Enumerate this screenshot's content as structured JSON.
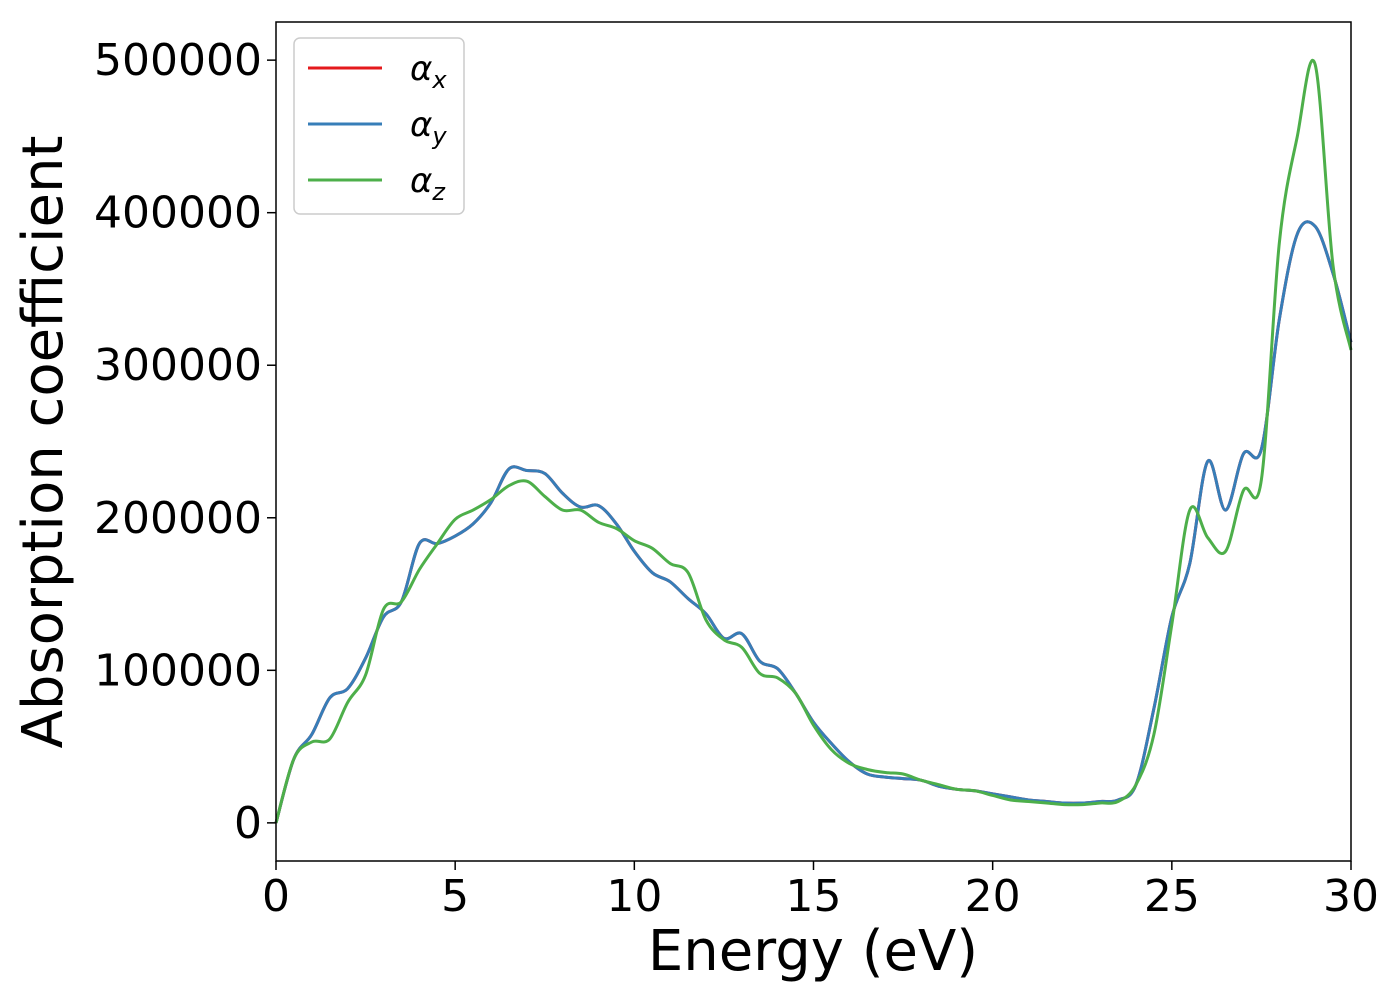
{
  "chart_data": {
    "type": "line",
    "title": "",
    "xlabel": "Energy (eV)",
    "ylabel": "Absorption coefficient",
    "xlim": [
      0,
      30
    ],
    "ylim": [
      -25000,
      525000
    ],
    "xticks": [
      0,
      5,
      10,
      15,
      20,
      25,
      30
    ],
    "xtick_labels": [
      "0",
      "5",
      "10",
      "15",
      "20",
      "25",
      "30"
    ],
    "yticks": [
      0,
      100000,
      200000,
      300000,
      400000,
      500000
    ],
    "ytick_labels": [
      "0",
      "100000",
      "200000",
      "300000",
      "400000",
      "500000"
    ],
    "grid": false,
    "legend_position": "top-left",
    "x": [
      0,
      0.5,
      1,
      1.5,
      2,
      2.5,
      3,
      3.5,
      4,
      4.5,
      5,
      5.5,
      6,
      6.5,
      7,
      7.5,
      8,
      8.5,
      9,
      9.5,
      10,
      10.5,
      11,
      11.5,
      12,
      12.5,
      13,
      13.5,
      14,
      14.5,
      15,
      15.5,
      16,
      16.5,
      17,
      17.5,
      18,
      18.5,
      19,
      19.5,
      20,
      20.5,
      21,
      21.5,
      22,
      22.5,
      23,
      23.5,
      24,
      24.5,
      25,
      25.5,
      26,
      26.5,
      27,
      27.5,
      28,
      28.5,
      29,
      29.5,
      30
    ],
    "series": [
      {
        "name": "α",
        "name_sub": "x",
        "color": "#e41a1c",
        "values": [
          0,
          42000,
          58000,
          82000,
          88000,
          108000,
          135000,
          145000,
          183000,
          183000,
          188000,
          196000,
          210000,
          232000,
          231000,
          229000,
          216000,
          207000,
          208000,
          196000,
          178000,
          164000,
          158000,
          147000,
          137000,
          121000,
          124000,
          106000,
          101000,
          85000,
          66000,
          52000,
          40000,
          32000,
          30000,
          29000,
          28000,
          24000,
          22000,
          21000,
          19000,
          17000,
          15000,
          14000,
          13000,
          13000,
          14000,
          15000,
          25000,
          75000,
          135000,
          170000,
          237000,
          205000,
          242000,
          245000,
          330000,
          386000,
          391000,
          360000,
          315000
        ]
      },
      {
        "name": "α",
        "name_sub": "y",
        "color": "#377eb8",
        "values": [
          0,
          42000,
          58000,
          82000,
          88000,
          108000,
          135000,
          145000,
          183000,
          183000,
          188000,
          196000,
          210000,
          232000,
          231000,
          229000,
          216000,
          207000,
          208000,
          196000,
          178000,
          164000,
          158000,
          147000,
          137000,
          121000,
          124000,
          106000,
          101000,
          85000,
          66000,
          52000,
          40000,
          32000,
          30000,
          29000,
          28000,
          24000,
          22000,
          21000,
          19000,
          17000,
          15000,
          14000,
          13000,
          13000,
          14000,
          15000,
          25000,
          75000,
          135000,
          170000,
          237000,
          205000,
          242000,
          245000,
          330000,
          386000,
          391000,
          360000,
          315000
        ]
      },
      {
        "name": "α",
        "name_sub": "z",
        "color": "#4daf4a",
        "values": [
          0,
          42000,
          53000,
          55000,
          79000,
          97000,
          140000,
          145000,
          166000,
          183000,
          199000,
          205000,
          212000,
          221000,
          224000,
          214000,
          205000,
          205000,
          197000,
          193000,
          185000,
          180000,
          170000,
          164000,
          133000,
          120000,
          115000,
          98000,
          95000,
          85000,
          64000,
          48000,
          39000,
          35000,
          33000,
          32000,
          28000,
          25000,
          22000,
          21000,
          18000,
          15000,
          14000,
          13000,
          12000,
          12000,
          13000,
          14000,
          25000,
          58000,
          130000,
          205000,
          187000,
          178000,
          218000,
          225000,
          380000,
          450000,
          497000,
          365000,
          310000
        ]
      }
    ]
  }
}
